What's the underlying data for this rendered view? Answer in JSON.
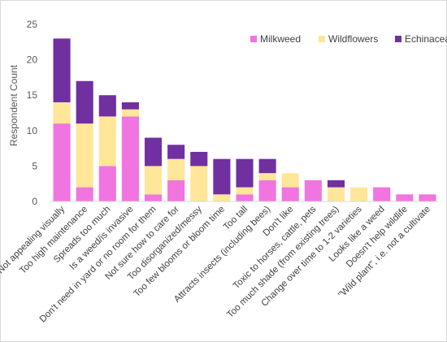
{
  "chart_data": {
    "type": "bar",
    "stacked": true,
    "title": "",
    "xlabel": "",
    "ylabel": "Respondent Count",
    "ylim": [
      0,
      25
    ],
    "yticks": [
      0,
      5,
      10,
      15,
      20,
      25
    ],
    "grid": false,
    "legend": "top-right",
    "categories": [
      "Not appealing visually",
      "Too high maintenance",
      "Spreads too much",
      "Is a weed/is invasive",
      "Don't need in yard or no room for them",
      "Not sure how to care for",
      "Too disorganized/messy",
      "Too few blooms or bloom time",
      "Too tall",
      "Attracts insects (including bees)",
      "Don't like",
      "Toxic to horses, cattle, pets",
      "Too much shade (from existing trees)",
      "Change over time to 1-2 varieties",
      "Looks like a weed",
      "Doesn't help wildlife",
      "\"Wild plant\", i.e. not a cultivate"
    ],
    "series": [
      {
        "name": "Milkweed",
        "color": "#f075e0",
        "values": [
          11,
          2,
          5,
          12,
          1,
          3,
          0,
          0,
          1,
          3,
          2,
          3,
          0,
          0,
          2,
          1,
          1
        ]
      },
      {
        "name": "Wildflowers",
        "color": "#ffe699",
        "values": [
          3,
          9,
          7,
          1,
          4,
          3,
          5,
          1,
          1,
          1,
          2,
          0,
          2,
          2,
          0,
          0,
          0
        ]
      },
      {
        "name": "Echinacea",
        "color": "#7030a0",
        "values": [
          9,
          6,
          3,
          1,
          4,
          2,
          2,
          5,
          4,
          2,
          0,
          0,
          1,
          0,
          0,
          0,
          0
        ]
      }
    ]
  }
}
